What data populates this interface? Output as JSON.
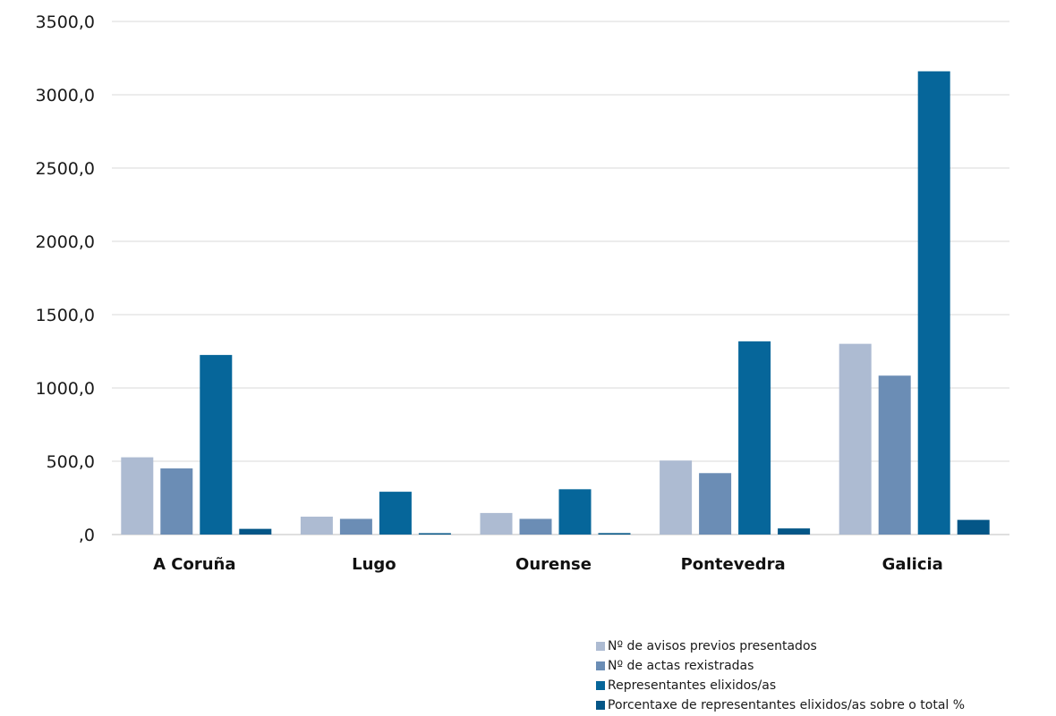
{
  "chart_data": {
    "type": "bar",
    "categories": [
      "A Coruña",
      "Lugo",
      "Ourense",
      "Pontevedra",
      "Galicia"
    ],
    "series": [
      {
        "name": "Nº de avisos previos presentados",
        "color": "#adbbd2",
        "values": [
          527,
          122,
          147,
          505,
          1301
        ]
      },
      {
        "name": "Nº de actas rexistradas",
        "color": "#6b8db5",
        "values": [
          451,
          107,
          107,
          419,
          1084
        ]
      },
      {
        "name": "Representantes elixidos/as",
        "color": "#06669a",
        "values": [
          1225,
          292,
          309,
          1318,
          3160
        ]
      },
      {
        "name": "Porcentaxe de representantes elixidos/as sobre o total %",
        "color": "#045687",
        "values": [
          38.8,
          9.2,
          9.8,
          41.7,
          100
        ]
      }
    ],
    "ylim": [
      0,
      3500
    ],
    "yticks": [
      0,
      500,
      1000,
      1500,
      2000,
      2500,
      3000,
      3500
    ],
    "ytick_labels": [
      ",0",
      "500,0",
      "1000,0",
      "1500,0",
      "2000,0",
      "2500,0",
      "3000,0",
      "3500,0"
    ],
    "grid": true,
    "legend_position": "bottom-right",
    "title": "",
    "xlabel": "",
    "ylabel": ""
  }
}
